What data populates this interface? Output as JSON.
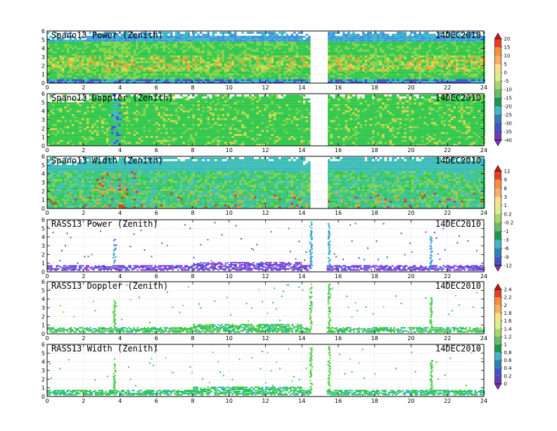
{
  "date_label": "14DEC2010",
  "chart_data": [
    {
      "type": "heatmap",
      "title": "Spano13 Power (Zenith)",
      "x_range": [
        0,
        24
      ],
      "y_range": [
        0,
        6
      ],
      "x_ticks": [
        "0",
        "2",
        "4",
        "6",
        "8",
        "10",
        "12",
        "14",
        "16",
        "18",
        "20",
        "22",
        "24"
      ],
      "y_ticks": [
        "0",
        "1",
        "2",
        "3",
        "4",
        "5",
        "6"
      ],
      "data_gap_x": [
        14.5,
        15.3
      ]
    },
    {
      "type": "heatmap",
      "title": "Spano13 Doppler (Zenith)",
      "x_range": [
        0,
        24
      ],
      "y_range": [
        0,
        6
      ],
      "x_ticks": [
        "0",
        "2",
        "4",
        "6",
        "8",
        "10",
        "12",
        "14",
        "16",
        "18",
        "20",
        "22",
        "24"
      ],
      "y_ticks": [
        "0",
        "1",
        "2",
        "3",
        "4",
        "5",
        "6"
      ],
      "data_gap_x": [
        14.5,
        15.3
      ]
    },
    {
      "type": "heatmap",
      "title": "Spano13 Width (Zenith)",
      "x_range": [
        0,
        24
      ],
      "y_range": [
        0,
        6
      ],
      "x_ticks": [
        "0",
        "2",
        "4",
        "6",
        "8",
        "10",
        "12",
        "14",
        "16",
        "18",
        "20",
        "22",
        "24"
      ],
      "y_ticks": [
        "0",
        "1",
        "2",
        "3",
        "4",
        "5",
        "6"
      ],
      "data_gap_x": [
        14.5,
        15.3
      ]
    },
    {
      "type": "heatmap",
      "title": "RASS13 Power (Zenith)",
      "x_range": [
        0,
        24
      ],
      "y_range": [
        0,
        6
      ],
      "x_ticks": [
        "0",
        "2",
        "4",
        "6",
        "8",
        "10",
        "12",
        "14",
        "16",
        "18",
        "20",
        "22",
        "24"
      ],
      "y_ticks": [
        "0",
        "1",
        "2",
        "3",
        "4",
        "5",
        "6"
      ],
      "data_gap_x": [
        14.5,
        15.3
      ]
    },
    {
      "type": "heatmap",
      "title": "RASS13 Doppler (Zenith)",
      "x_range": [
        0,
        24
      ],
      "y_range": [
        0,
        6
      ],
      "x_ticks": [
        "0",
        "2",
        "4",
        "6",
        "8",
        "10",
        "12",
        "14",
        "16",
        "18",
        "20",
        "22",
        "24"
      ],
      "y_ticks": [
        "0",
        "1",
        "2",
        "3",
        "4",
        "5",
        "6"
      ],
      "data_gap_x": [
        14.5,
        15.3
      ]
    },
    {
      "type": "heatmap",
      "title": "RASS13 Width (Zenith)",
      "x_range": [
        0,
        24
      ],
      "y_range": [
        0,
        6
      ],
      "x_ticks": [
        "0",
        "2",
        "4",
        "6",
        "8",
        "10",
        "12",
        "14",
        "16",
        "18",
        "20",
        "22",
        "24"
      ],
      "y_ticks": [
        "0",
        "1",
        "2",
        "3",
        "4",
        "5",
        "6"
      ],
      "data_gap_x": [
        14.5,
        15.3
      ]
    }
  ],
  "colorbars": [
    {
      "name": "power-colorbar",
      "labels": [
        "20",
        "15",
        "10",
        "5",
        "0",
        "-5",
        "-10",
        "-15",
        "-20",
        "-25",
        "-30",
        "-35",
        "-40"
      ],
      "colors": [
        "#d7191c",
        "#f03b20",
        "#fd8d3c",
        "#fdae61",
        "#fee08b",
        "#d9ef8b",
        "#a6d96a",
        "#66bd63",
        "#1a9850",
        "#41b6c4",
        "#2c7fb8",
        "#4054c8",
        "#6a3db8",
        "#8f2fbf"
      ]
    },
    {
      "name": "width-colorbar",
      "labels": [
        "12",
        "9",
        "6",
        "3",
        "1",
        "0.2",
        "-0.2",
        "-1",
        "-3",
        "-6",
        "-9",
        "-12"
      ],
      "colors": [
        "#d7191c",
        "#f03b20",
        "#fd8d3c",
        "#fdae61",
        "#fee08b",
        "#d9ef8b",
        "#a6d96a",
        "#66bd63",
        "#1a9850",
        "#41b6c4",
        "#2c7fb8",
        "#4054c8",
        "#8f2fbf"
      ]
    },
    {
      "name": "rass-colorbar",
      "labels": [
        "2.4",
        "2.2",
        "2",
        "1.8",
        "1.6",
        "1.4",
        "1.2",
        "1",
        "0.8",
        "0.6",
        "0.4",
        "0.2",
        "0"
      ],
      "colors": [
        "#d7191c",
        "#f03b20",
        "#fd8d3c",
        "#fdae61",
        "#fee08b",
        "#d9ef8b",
        "#a6d96a",
        "#66bd63",
        "#1a9850",
        "#41b6c4",
        "#2c7fb8",
        "#4054c8",
        "#6a3db8",
        "#8f2fbf"
      ]
    }
  ]
}
